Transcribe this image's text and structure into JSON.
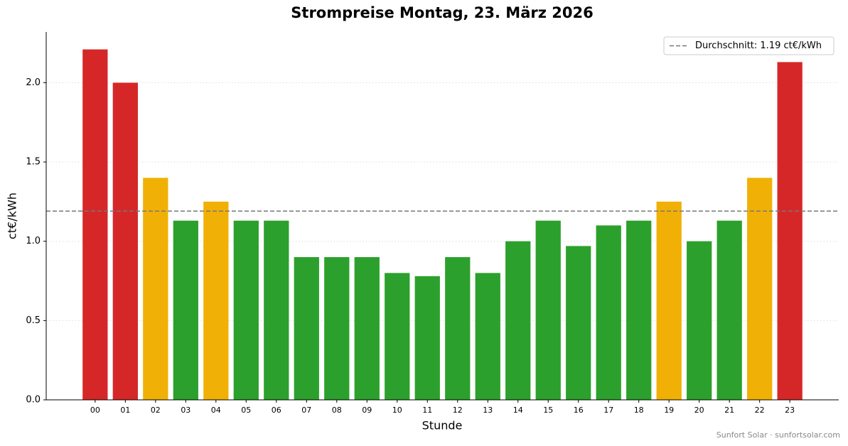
{
  "chart_data": {
    "type": "bar",
    "title": "Strompreise Montag, 23. März 2026",
    "x_label": "Stunde",
    "y_label": "ct€/kWh",
    "categories": [
      "00",
      "01",
      "02",
      "03",
      "04",
      "05",
      "06",
      "07",
      "08",
      "09",
      "10",
      "11",
      "12",
      "13",
      "14",
      "15",
      "16",
      "17",
      "18",
      "19",
      "20",
      "21",
      "22",
      "23"
    ],
    "values": [
      2.21,
      2.0,
      1.4,
      1.13,
      1.25,
      1.13,
      1.13,
      0.9,
      0.9,
      0.9,
      0.8,
      0.78,
      0.9,
      0.8,
      1.0,
      1.13,
      0.97,
      1.1,
      1.13,
      1.25,
      1.0,
      1.13,
      1.4,
      2.13
    ],
    "colors": [
      "#d62728",
      "#d62728",
      "#f0b005",
      "#2ca02c",
      "#f0b005",
      "#2ca02c",
      "#2ca02c",
      "#2ca02c",
      "#2ca02c",
      "#2ca02c",
      "#2ca02c",
      "#2ca02c",
      "#2ca02c",
      "#2ca02c",
      "#2ca02c",
      "#2ca02c",
      "#2ca02c",
      "#2ca02c",
      "#2ca02c",
      "#f0b005",
      "#2ca02c",
      "#2ca02c",
      "#f0b005",
      "#d62728"
    ],
    "average": {
      "value": 1.19,
      "label": "Durchschnitt: 1.19 ct€/kWh",
      "color": "#777777"
    },
    "ylim": [
      0,
      2.32
    ],
    "yticks": [
      {
        "value": 0,
        "label": "0.0"
      },
      0.5,
      {
        "value": 1,
        "label": "1.0"
      },
      1.5,
      {
        "value": 2,
        "label": "2.0"
      }
    ],
    "grid": true,
    "legend": "upper right",
    "footer": "Sunfort Solar · sunfortsolar.com"
  }
}
